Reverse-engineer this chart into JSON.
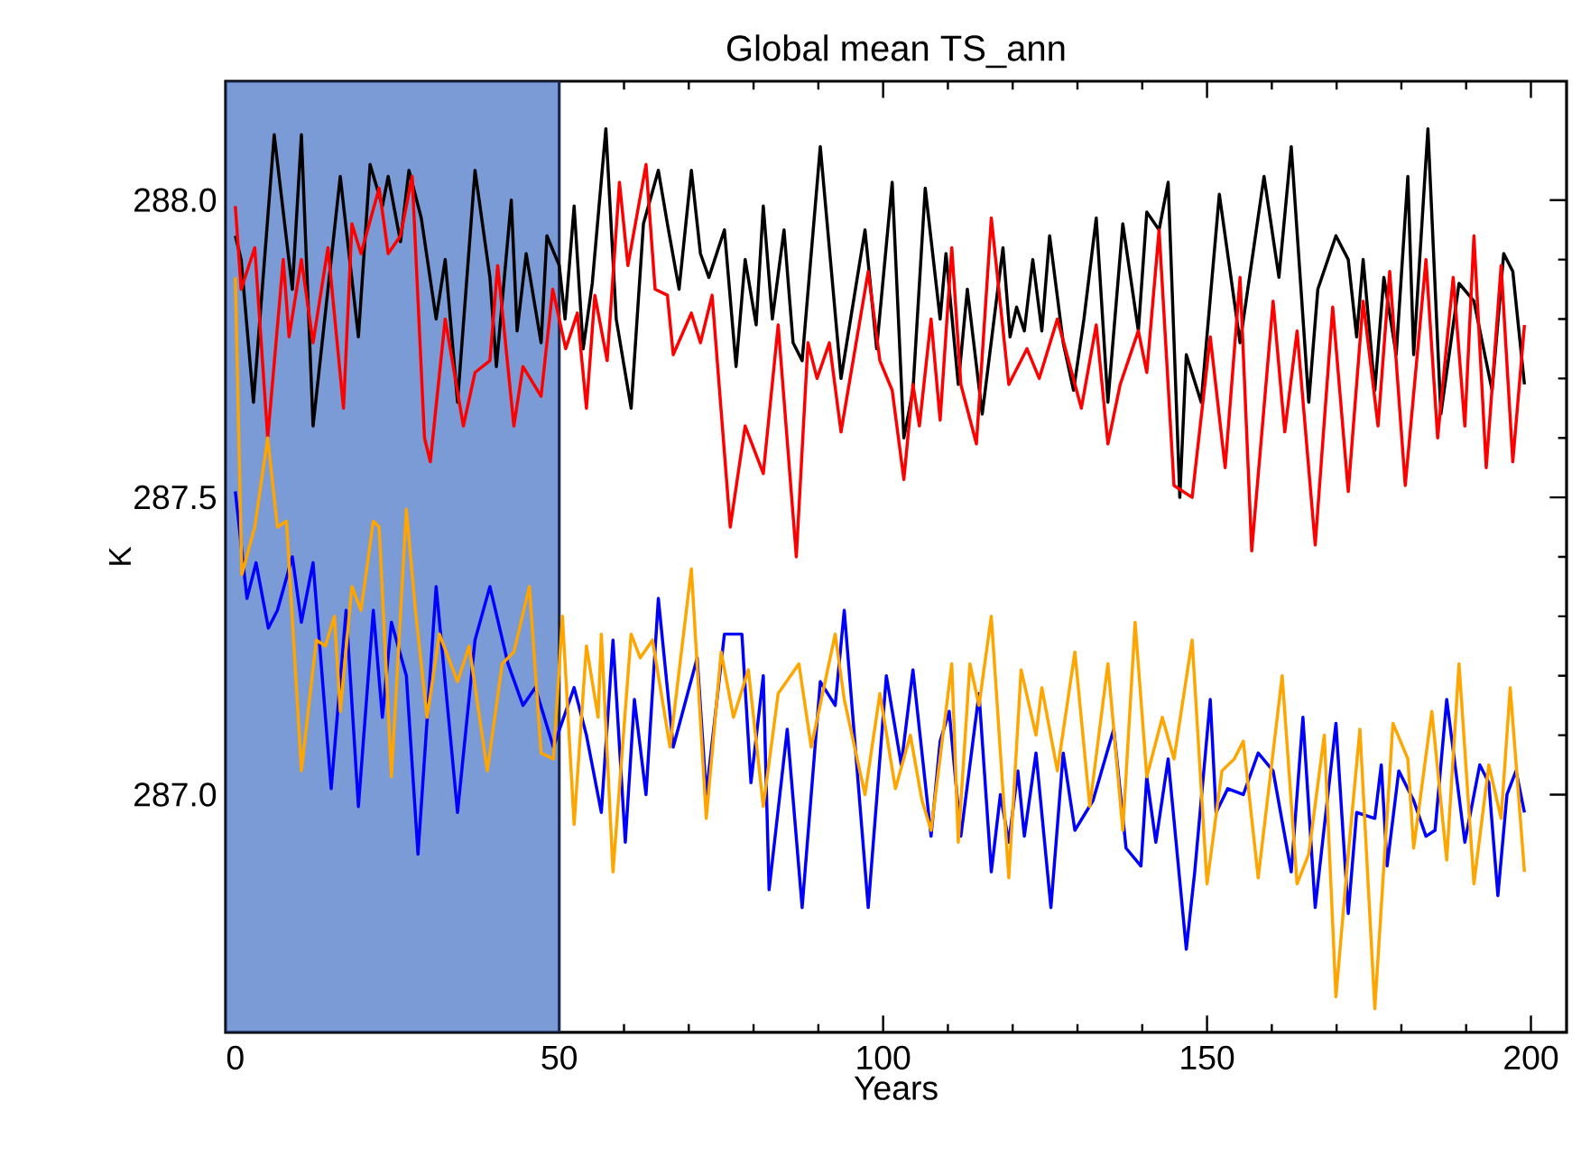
{
  "chart_data": {
    "type": "line",
    "title": "Global mean TS_ann",
    "xlabel": "Years",
    "ylabel": "K",
    "xlim": [
      -1.5,
      205.5
    ],
    "ylim": [
      286.6,
      288.2
    ],
    "xticks": [
      0,
      50,
      100,
      150,
      200
    ],
    "yticks": [
      {
        "value": 287.0,
        "label": "287.0"
      },
      {
        "value": 287.5,
        "label": "287.5"
      },
      {
        "value": 288.0,
        "label": "288.0"
      }
    ],
    "bands": [
      {
        "axis": "x",
        "from": -1.5,
        "to": 50,
        "color": "#7b9bd6"
      }
    ],
    "series": [
      {
        "color": "#000000",
        "x": [
          0,
          0.9,
          2.8,
          6,
          8.8,
          10.2,
          12,
          16.2,
          19,
          20.8,
          22.7,
          23.6,
          25.5,
          26.8,
          28.7,
          31,
          32.4,
          34.3,
          37,
          39.3,
          40.3,
          42.6,
          43.5,
          44.9,
          47.2,
          48.1,
          50,
          50.9,
          52.3,
          53.7,
          55.1,
          57.2,
          58.8,
          61.1,
          63,
          65.3,
          66.7,
          68.5,
          70.4,
          71.8,
          73.1,
          75.5,
          77.3,
          78.7,
          80.4,
          81.5,
          82.9,
          84.7,
          86.1,
          87.5,
          90.3,
          93.5,
          97.2,
          99,
          101.4,
          103.2,
          104.6,
          106.5,
          108.8,
          109.7,
          111.6,
          113,
          115.3,
          118.5,
          119.6,
          120.6,
          121.8,
          123.1,
          124.5,
          125.7,
          127.8,
          129.4,
          131,
          132.9,
          134.7,
          137,
          139.4,
          140.7,
          142.6,
          144,
          145.8,
          146.8,
          149.1,
          151.9,
          155.1,
          158.8,
          161.1,
          163,
          165.7,
          167.1,
          169.9,
          171.8,
          173.1,
          174.1,
          175.9,
          177.3,
          179.2,
          181,
          181.9,
          184.1,
          186.1,
          188.9,
          191.2,
          194,
          195.8,
          197.2,
          199
        ],
        "values": [
          287.94,
          287.9,
          287.66,
          288.11,
          287.85,
          288.11,
          287.62,
          288.04,
          287.77,
          288.06,
          287.99,
          288.04,
          287.93,
          288.05,
          287.97,
          287.8,
          287.9,
          287.66,
          288.05,
          287.87,
          287.72,
          288.0,
          287.78,
          287.91,
          287.76,
          287.94,
          287.89,
          287.8,
          287.99,
          287.75,
          287.86,
          288.12,
          287.8,
          287.65,
          287.96,
          288.05,
          287.96,
          287.85,
          288.05,
          287.91,
          287.87,
          287.95,
          287.72,
          287.9,
          287.79,
          287.99,
          287.8,
          287.95,
          287.76,
          287.73,
          288.09,
          287.7,
          287.95,
          287.75,
          288.03,
          287.6,
          287.68,
          288.02,
          287.8,
          287.91,
          287.69,
          287.85,
          287.64,
          287.92,
          287.77,
          287.82,
          287.78,
          287.9,
          287.78,
          287.94,
          287.76,
          287.68,
          287.8,
          287.97,
          287.66,
          287.96,
          287.78,
          287.98,
          287.95,
          288.03,
          287.5,
          287.74,
          287.66,
          288.01,
          287.76,
          288.04,
          287.87,
          288.09,
          287.66,
          287.85,
          287.94,
          287.9,
          287.77,
          287.9,
          287.68,
          287.87,
          287.74,
          288.04,
          287.74,
          288.12,
          287.64,
          287.86,
          287.83,
          287.68,
          287.91,
          287.88,
          287.69
        ]
      },
      {
        "color": "#ff0000",
        "x": [
          0,
          0.9,
          3,
          5,
          7.4,
          8.3,
          10.2,
          12,
          14.3,
          16.7,
          18,
          19.4,
          22.2,
          23.6,
          25.5,
          27.3,
          29.2,
          30.1,
          32.4,
          35.2,
          37,
          39.3,
          40.5,
          43,
          44.4,
          47.2,
          49,
          51,
          52.8,
          54.2,
          55.5,
          57.4,
          59.3,
          60.6,
          63.4,
          64.8,
          66.7,
          67.6,
          70.4,
          71.8,
          73.6,
          76.4,
          78.7,
          81.5,
          83.8,
          86.6,
          88.4,
          89.8,
          91.7,
          93.5,
          97.7,
          99.5,
          101.4,
          103.2,
          104.6,
          105.6,
          107.4,
          108.8,
          110.6,
          112,
          114.4,
          116.7,
          119.4,
          122.2,
          124.1,
          126.9,
          130.6,
          132.9,
          134.7,
          136.6,
          139.4,
          140.7,
          142.6,
          144.9,
          147.7,
          150.5,
          152.8,
          155.1,
          156.9,
          160.2,
          162,
          163.9,
          166.7,
          169.4,
          171.8,
          174.1,
          176.4,
          178.2,
          180.6,
          183.8,
          185.6,
          188,
          189.8,
          191.2,
          193.1,
          195.4,
          197.2,
          199
        ],
        "values": [
          287.99,
          287.85,
          287.92,
          287.6,
          287.9,
          287.77,
          287.9,
          287.76,
          287.92,
          287.65,
          287.96,
          287.91,
          288.02,
          287.91,
          287.94,
          288.04,
          287.6,
          287.56,
          287.8,
          287.62,
          287.71,
          287.73,
          287.89,
          287.62,
          287.72,
          287.67,
          287.85,
          287.75,
          287.81,
          287.65,
          287.84,
          287.73,
          288.03,
          287.89,
          288.06,
          287.85,
          287.84,
          287.74,
          287.81,
          287.76,
          287.84,
          287.45,
          287.62,
          287.54,
          287.79,
          287.4,
          287.76,
          287.7,
          287.76,
          287.61,
          287.88,
          287.73,
          287.68,
          287.53,
          287.69,
          287.62,
          287.8,
          287.63,
          287.92,
          287.69,
          287.59,
          287.97,
          287.69,
          287.75,
          287.7,
          287.8,
          287.65,
          287.79,
          287.59,
          287.69,
          287.78,
          287.71,
          287.95,
          287.52,
          287.5,
          287.77,
          287.55,
          287.87,
          287.41,
          287.83,
          287.61,
          287.78,
          287.42,
          287.82,
          287.51,
          287.83,
          287.62,
          287.88,
          287.52,
          287.9,
          287.6,
          287.87,
          287.62,
          287.94,
          287.55,
          287.89,
          287.56,
          287.79
        ]
      },
      {
        "color": "#0000ff",
        "x": [
          0,
          1.8,
          3.2,
          5.1,
          6.5,
          8.8,
          10.2,
          12,
          14.8,
          17.1,
          19,
          21.3,
          22.7,
          24.1,
          26.4,
          28.2,
          31,
          34.3,
          37,
          39.3,
          42.1,
          44.4,
          46.3,
          49.1,
          52.3,
          54.2,
          56.5,
          58.3,
          60.2,
          61.6,
          63.4,
          65.3,
          67.6,
          71.3,
          72.7,
          75.5,
          78.2,
          79.6,
          81.5,
          82.4,
          85.2,
          87.5,
          90.3,
          92.6,
          94,
          97.7,
          100.5,
          102.8,
          104.6,
          107.4,
          108.8,
          110.2,
          112,
          114.8,
          116.7,
          118.1,
          119.4,
          120.8,
          121.8,
          123.6,
          125.9,
          127.8,
          129.6,
          132.4,
          135.6,
          137.5,
          139.8,
          140.7,
          142.1,
          144,
          146.8,
          148.1,
          150.5,
          151.4,
          153.2,
          155.6,
          157.9,
          160.2,
          163,
          164.8,
          166.7,
          169.9,
          171.8,
          173.1,
          175.9,
          176.9,
          177.8,
          179.6,
          181.9,
          183.8,
          185.2,
          187,
          189.8,
          192.1,
          193.5,
          194.9,
          196.3,
          197.7,
          199
        ],
        "values": [
          287.51,
          287.33,
          287.39,
          287.28,
          287.31,
          287.4,
          287.29,
          287.39,
          287.01,
          287.31,
          286.98,
          287.31,
          287.13,
          287.29,
          287.2,
          286.9,
          287.35,
          286.97,
          287.26,
          287.35,
          287.22,
          287.15,
          287.18,
          287.08,
          287.18,
          287.1,
          286.97,
          287.26,
          286.92,
          287.16,
          287.0,
          287.33,
          287.08,
          287.23,
          287.0,
          287.27,
          287.27,
          287.02,
          287.2,
          286.84,
          287.11,
          286.81,
          287.19,
          287.15,
          287.31,
          286.81,
          287.2,
          287.05,
          287.21,
          286.93,
          287.09,
          287.14,
          286.93,
          287.17,
          286.87,
          287.0,
          286.92,
          287.04,
          286.93,
          287.07,
          286.81,
          287.07,
          286.94,
          286.99,
          287.11,
          286.91,
          286.88,
          287.03,
          286.92,
          287.06,
          286.74,
          286.87,
          287.16,
          286.97,
          287.01,
          287.0,
          287.07,
          287.04,
          286.87,
          287.13,
          286.81,
          287.12,
          286.8,
          286.97,
          286.96,
          287.05,
          286.88,
          287.04,
          286.99,
          286.93,
          286.94,
          287.16,
          286.92,
          287.05,
          287.02,
          286.83,
          287.0,
          287.04,
          286.97
        ]
      },
      {
        "color": "#ffa500",
        "x": [
          0,
          1,
          3,
          5,
          6.5,
          7.9,
          10.2,
          12.5,
          13.9,
          15.3,
          16.2,
          18,
          19.4,
          21.3,
          22.2,
          24.1,
          26.4,
          27.8,
          29.6,
          31.5,
          34.3,
          36.1,
          38.9,
          41.2,
          43,
          45.4,
          47.2,
          49.1,
          50.5,
          52.3,
          54.2,
          56,
          56.5,
          58.3,
          61.1,
          62.5,
          64.4,
          67.1,
          70.4,
          72.7,
          75,
          76.9,
          79.2,
          81.5,
          83.8,
          87,
          88.9,
          92.6,
          94,
          97.2,
          99.5,
          101.9,
          104.2,
          106,
          107.4,
          110.6,
          111.6,
          113.4,
          114.8,
          116.7,
          119.4,
          121.3,
          123.6,
          124.5,
          126.9,
          129.6,
          131.9,
          134.7,
          137,
          138.9,
          140.7,
          143.1,
          144.9,
          147.7,
          150,
          152.3,
          154.2,
          155.6,
          157.9,
          161.6,
          163.9,
          165.7,
          168.1,
          169.9,
          171.8,
          173.6,
          175.9,
          178.7,
          181,
          181.9,
          184.7,
          187,
          188.9,
          191.2,
          193.5,
          195.4,
          196.8,
          199
        ],
        "values": [
          287.87,
          287.37,
          287.45,
          287.6,
          287.45,
          287.46,
          287.04,
          287.26,
          287.25,
          287.3,
          287.14,
          287.35,
          287.31,
          287.46,
          287.45,
          287.03,
          287.48,
          287.31,
          287.13,
          287.27,
          287.19,
          287.25,
          287.04,
          287.22,
          287.24,
          287.35,
          287.07,
          287.06,
          287.3,
          286.95,
          287.25,
          287.13,
          287.27,
          286.87,
          287.27,
          287.23,
          287.26,
          287.08,
          287.38,
          286.96,
          287.24,
          287.13,
          287.21,
          286.98,
          287.17,
          287.22,
          287.08,
          287.27,
          287.16,
          287.0,
          287.17,
          287.01,
          287.1,
          286.99,
          286.94,
          287.22,
          286.92,
          287.22,
          287.15,
          287.3,
          286.86,
          287.21,
          287.1,
          287.18,
          287.04,
          287.24,
          286.98,
          287.22,
          286.94,
          287.29,
          287.03,
          287.13,
          287.06,
          287.26,
          286.85,
          287.04,
          287.06,
          287.09,
          286.86,
          287.2,
          286.85,
          286.9,
          287.1,
          286.66,
          286.9,
          287.11,
          286.64,
          287.12,
          287.06,
          286.91,
          287.14,
          286.89,
          287.22,
          286.85,
          287.05,
          286.96,
          287.18,
          286.87
        ]
      }
    ]
  }
}
